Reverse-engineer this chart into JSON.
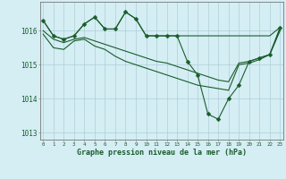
{
  "xlabel": "Graphe pression niveau de la mer (hPa)",
  "bg_color": "#d4eef4",
  "grid_color": "#b0cdd6",
  "line_color": "#1a5c2a",
  "ylim": [
    1012.8,
    1016.85
  ],
  "xlim": [
    -0.3,
    23.3
  ],
  "yticks": [
    1013,
    1014,
    1015,
    1016
  ],
  "xtick_labels": [
    "0",
    "1",
    "2",
    "3",
    "4",
    "5",
    "6",
    "7",
    "8",
    "9",
    "10",
    "11",
    "12",
    "13",
    "14",
    "15",
    "16",
    "17",
    "18",
    "19",
    "20",
    "21",
    "22",
    "23"
  ],
  "series": [
    [
      1016.3,
      1015.85,
      1015.75,
      1015.85,
      1016.2,
      1016.4,
      1016.05,
      1016.05,
      1016.55,
      1016.35,
      1015.85,
      1015.85,
      1015.85,
      1015.85,
      1015.85,
      1015.85,
      1015.85,
      1015.85,
      1015.85,
      1015.85,
      1015.85,
      1015.85,
      1015.85,
      1016.1
    ],
    [
      1016.3,
      1015.85,
      1015.75,
      1015.85,
      1016.2,
      1016.4,
      1016.05,
      1016.05,
      1016.55,
      1016.35,
      1015.85,
      1015.85,
      1015.85,
      1015.85,
      1015.1,
      1014.7,
      1013.55,
      1013.4,
      1014.0,
      1014.4,
      1015.1,
      1015.2,
      1015.3,
      1016.1
    ],
    [
      1016.0,
      1015.75,
      1015.65,
      1015.75,
      1015.8,
      1015.7,
      1015.6,
      1015.5,
      1015.4,
      1015.3,
      1015.2,
      1015.1,
      1015.05,
      1014.95,
      1014.85,
      1014.75,
      1014.65,
      1014.55,
      1014.5,
      1015.05,
      1015.1,
      1015.2,
      1015.3,
      1016.05
    ],
    [
      1015.9,
      1015.5,
      1015.45,
      1015.7,
      1015.75,
      1015.55,
      1015.45,
      1015.25,
      1015.1,
      1015.0,
      1014.9,
      1014.8,
      1014.7,
      1014.6,
      1014.5,
      1014.4,
      1014.35,
      1014.3,
      1014.25,
      1015.0,
      1015.05,
      1015.15,
      1015.3,
      1016.0
    ]
  ],
  "series_markers": [
    false,
    true,
    false,
    false
  ],
  "marker": "D",
  "marker_size": 2.5,
  "linewidth": 0.8
}
